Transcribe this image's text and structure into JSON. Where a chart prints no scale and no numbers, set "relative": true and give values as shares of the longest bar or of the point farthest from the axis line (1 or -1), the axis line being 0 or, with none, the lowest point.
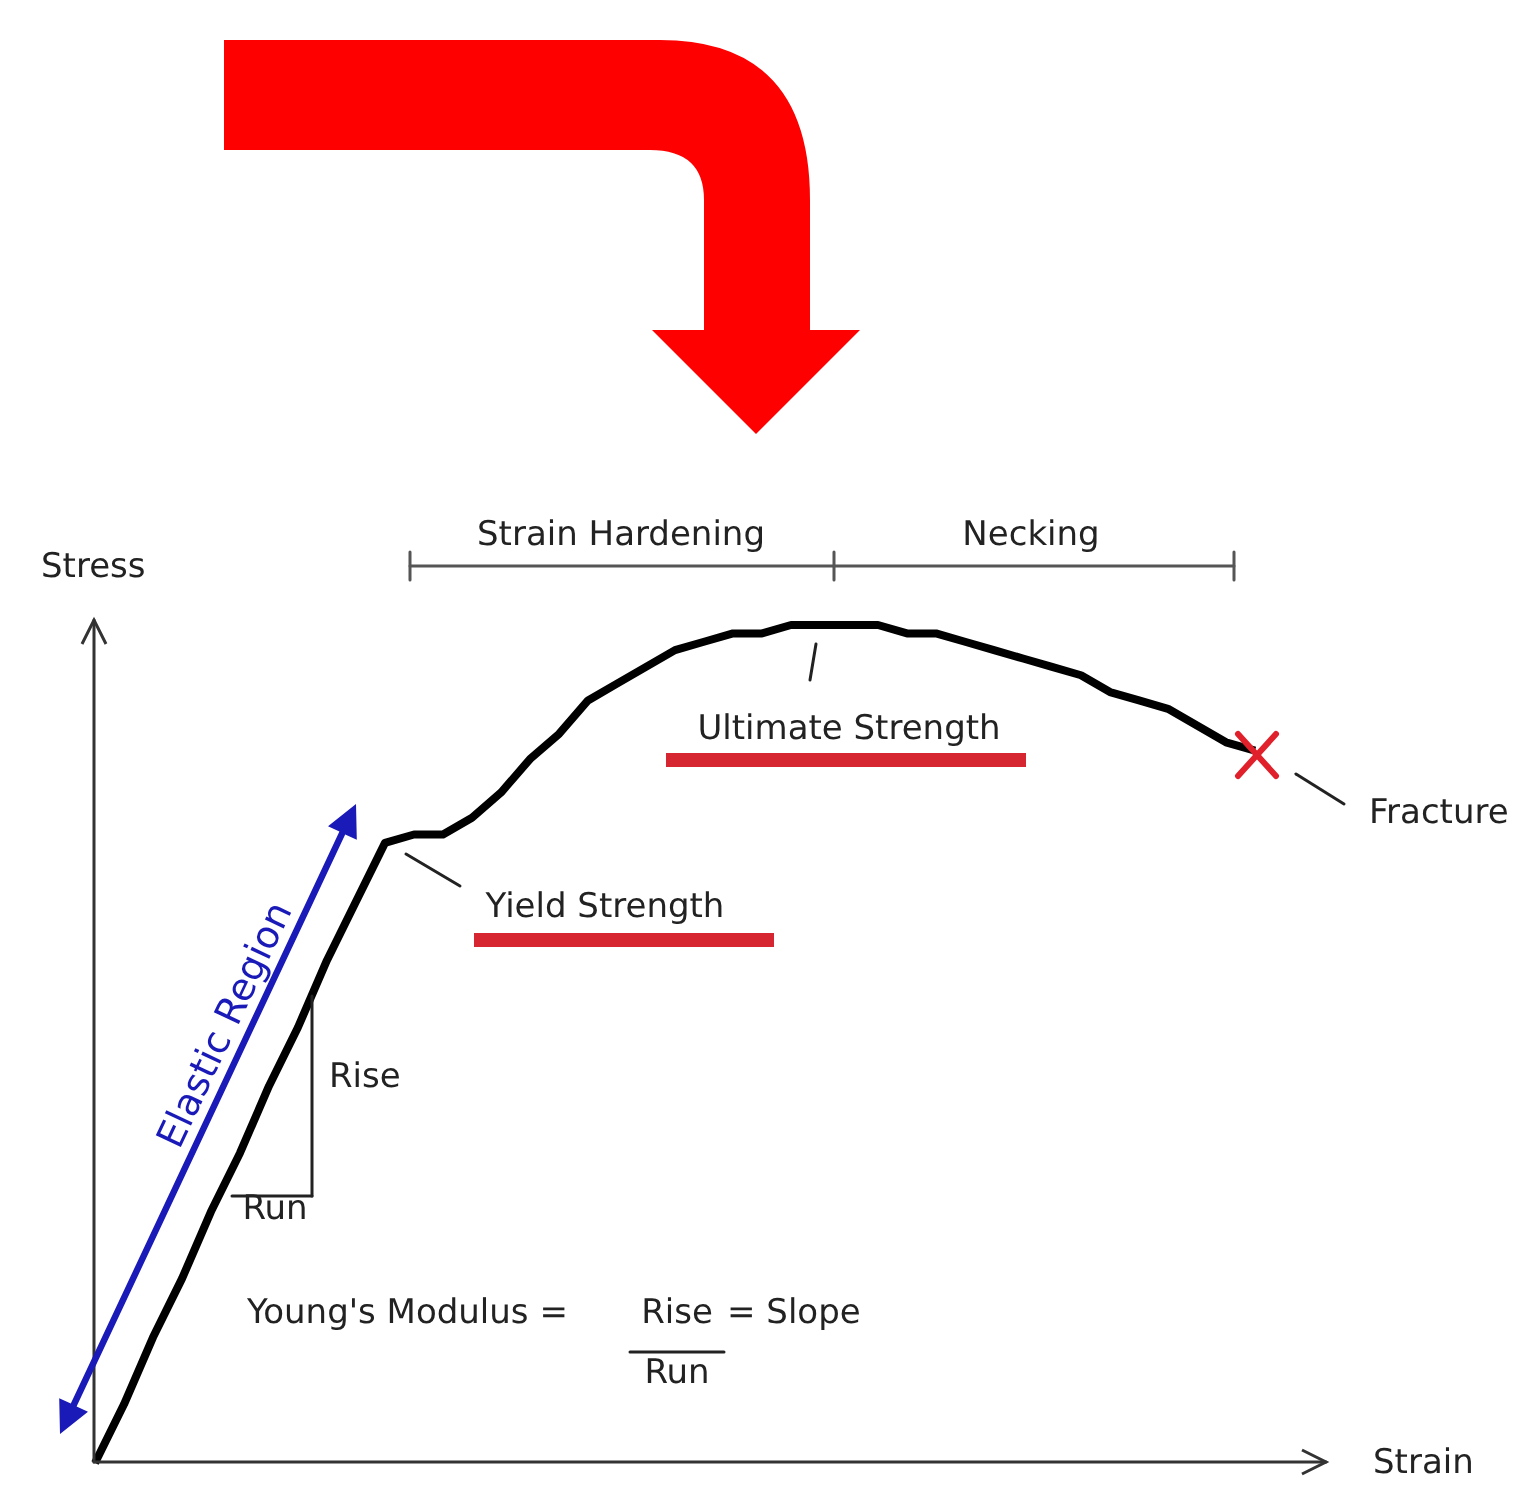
{
  "chart_data": {
    "type": "line",
    "relative": true,
    "xlabel": "Strain",
    "ylabel": "Stress",
    "marker": "none",
    "line_style": "solid",
    "grid": false,
    "categories": [
      null,
      null,
      null,
      null,
      null,
      null,
      null,
      null,
      null,
      null,
      null,
      null,
      null,
      null,
      null,
      null,
      null,
      null,
      null,
      null,
      null,
      null,
      null,
      null,
      null,
      null,
      null,
      null,
      null,
      null,
      null,
      null,
      null,
      null,
      null,
      null,
      null,
      null,
      null,
      null,
      null
    ],
    "series": [
      {
        "color": "#000000",
        "values": [
          0,
          0.07,
          0.15,
          0.22,
          0.3,
          0.37,
          0.45,
          0.52,
          0.6,
          0.67,
          0.74,
          0.75,
          0.75,
          0.77,
          0.8,
          0.84,
          0.87,
          0.91,
          0.93,
          0.95,
          0.97,
          0.98,
          0.99,
          0.99,
          1.0,
          1.0,
          1.0,
          1.0,
          0.99,
          0.99,
          0.98,
          0.97,
          0.96,
          0.95,
          0.94,
          0.92,
          0.91,
          0.9,
          0.88,
          0.86,
          0.85
        ]
      }
    ],
    "annotations": [
      "Strain Hardening",
      "Necking",
      "Ultimate Strength",
      "Yield Strength",
      "Fracture",
      "Elastic Region",
      "Rise",
      "Run",
      "Young's Modulus =",
      "Rise",
      "= Slope",
      "Run"
    ]
  }
}
